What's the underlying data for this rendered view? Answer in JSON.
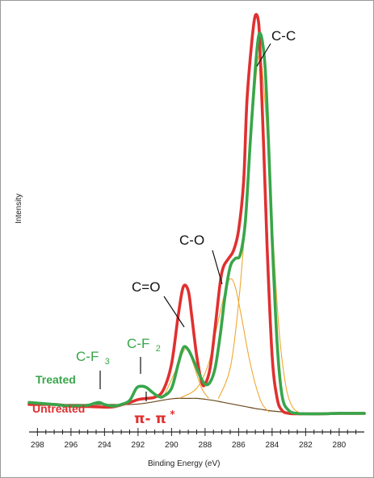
{
  "chart_data": {
    "type": "line",
    "title": "",
    "xlabel": "Binding Energy (eV)",
    "ylabel": "Intensity",
    "x_reversed": true,
    "xlim": [
      298.5,
      278.5
    ],
    "ylim": [
      0,
      100
    ],
    "xticks": [
      298,
      296,
      294,
      292,
      290,
      288,
      286,
      284,
      282,
      280
    ],
    "xtick_labels": [
      "298",
      "296",
      "294",
      "292",
      "290",
      "288",
      "286",
      "284",
      "282",
      "280"
    ],
    "yticks_shown": false,
    "series": [
      {
        "name": "Untreated",
        "color": "#e03030",
        "x": [
          298.5,
          297,
          296,
          295,
          294.3,
          293.5,
          292.5,
          292,
          291.5,
          291,
          290.5,
          290,
          289.6,
          289.3,
          289.0,
          288.8,
          288.5,
          288.2,
          288.0,
          287.7,
          287.4,
          287.1,
          286.9,
          286.6,
          286.3,
          286.0,
          285.7,
          285.5,
          285.2,
          285.0,
          284.8,
          284.7,
          284.5,
          284.3,
          284.0,
          283.7,
          283.4,
          283.0,
          282.5,
          282,
          281,
          280,
          279,
          278.5
        ],
        "y": [
          3.0,
          3.0,
          2.6,
          2.5,
          2.4,
          2.4,
          3.5,
          4.2,
          4.5,
          4.8,
          6.5,
          13,
          25,
          32,
          31,
          25,
          15,
          8.5,
          8,
          12,
          22,
          33,
          37,
          39,
          41,
          46,
          58,
          78,
          93,
          99,
          97,
          88,
          66,
          42,
          15,
          4.5,
          1.5,
          0.8,
          0.7,
          0.7,
          0.7,
          0.8,
          0.8,
          0.8
        ]
      },
      {
        "name": "Treated",
        "color": "#38a64a",
        "x": [
          298.5,
          297,
          296,
          295,
          294.6,
          294.3,
          294.0,
          293.5,
          293,
          292.5,
          292.1,
          291.8,
          291.5,
          291.2,
          290.8,
          290.5,
          290.0,
          289.6,
          289.3,
          289.0,
          288.6,
          288.3,
          288.0,
          287.7,
          287.4,
          287.1,
          286.8,
          286.5,
          286.2,
          285.9,
          285.6,
          285.3,
          285.0,
          284.8,
          284.6,
          284.4,
          284.2,
          284.0,
          283.7,
          283.4,
          283.0,
          282.5,
          282,
          281,
          280,
          279,
          278.5
        ],
        "y": [
          3.5,
          3.0,
          2.6,
          2.8,
          3.3,
          3.5,
          3.0,
          2.6,
          3.0,
          4.0,
          7.0,
          7.5,
          7.2,
          6.2,
          5.0,
          5.0,
          7,
          13,
          17,
          16.5,
          13,
          10,
          8,
          8.5,
          12,
          20,
          30,
          37,
          39,
          40,
          48,
          68,
          86,
          94,
          93,
          85,
          66,
          44,
          18,
          5,
          1.5,
          0.8,
          0.7,
          0.7,
          0.8,
          0.8,
          0.8
        ]
      },
      {
        "name": "",
        "color": "#f0a830",
        "x": [
          290.5,
          289.8,
          289.3,
          289.0,
          288.7,
          288.2,
          287.8
        ],
        "y": [
          4.6,
          11,
          16,
          16.5,
          13,
          7,
          4.6
        ]
      },
      {
        "name": "",
        "color": "#f0a830",
        "x": [
          289.5,
          288.5,
          287.8,
          287.3,
          286.8,
          286.5,
          286.2,
          285.8,
          285.4,
          285.0,
          284.6,
          284.2
        ],
        "y": [
          4.6,
          7,
          13,
          22,
          31,
          34,
          32,
          24,
          15,
          8,
          3.2,
          1.2
        ]
      },
      {
        "name": "",
        "color": "#f0a830",
        "x": [
          287.2,
          286.5,
          286.0,
          285.6,
          285.3,
          285.0,
          284.8,
          284.6,
          284.3,
          284.0,
          283.6,
          283.2,
          282.8,
          282.3
        ],
        "y": [
          4.5,
          12,
          28,
          48,
          66,
          82,
          89,
          86,
          70,
          48,
          22,
          8,
          2.5,
          0.8
        ]
      },
      {
        "name": "",
        "color": "#6b4a1e",
        "x": [
          298.5,
          296,
          294,
          292,
          290,
          289,
          288.5,
          288,
          287.5,
          287,
          286.5,
          286,
          285.5,
          285,
          284.5,
          284,
          283.5,
          283,
          282,
          281,
          280,
          279,
          278.5
        ],
        "y": [
          3.0,
          3.0,
          3.0,
          3.1,
          4.4,
          4.5,
          4.5,
          4.3,
          4.0,
          3.6,
          3.2,
          2.8,
          2.4,
          2.0,
          1.7,
          1.4,
          1.2,
          1.0,
          0.8,
          0.7,
          0.7,
          0.7,
          0.7
        ]
      }
    ],
    "annotations": {
      "cc": "C-C",
      "co": "C-O",
      "c_double_o": "C=O",
      "cf3_main": "C-F",
      "cf3_sub": "3",
      "cf2_main": "C-F",
      "cf2_sub": "2",
      "pi_main": "π- π",
      "pi_sup": "*"
    },
    "legend": {
      "placement": "left",
      "treated": "Treated",
      "untreated": "Untreated"
    }
  },
  "colors": {
    "untreated": "#e03030",
    "treated": "#38a64a",
    "fit_component": "#f0a830",
    "background": "#6b4a1e",
    "axis": "#222222"
  }
}
